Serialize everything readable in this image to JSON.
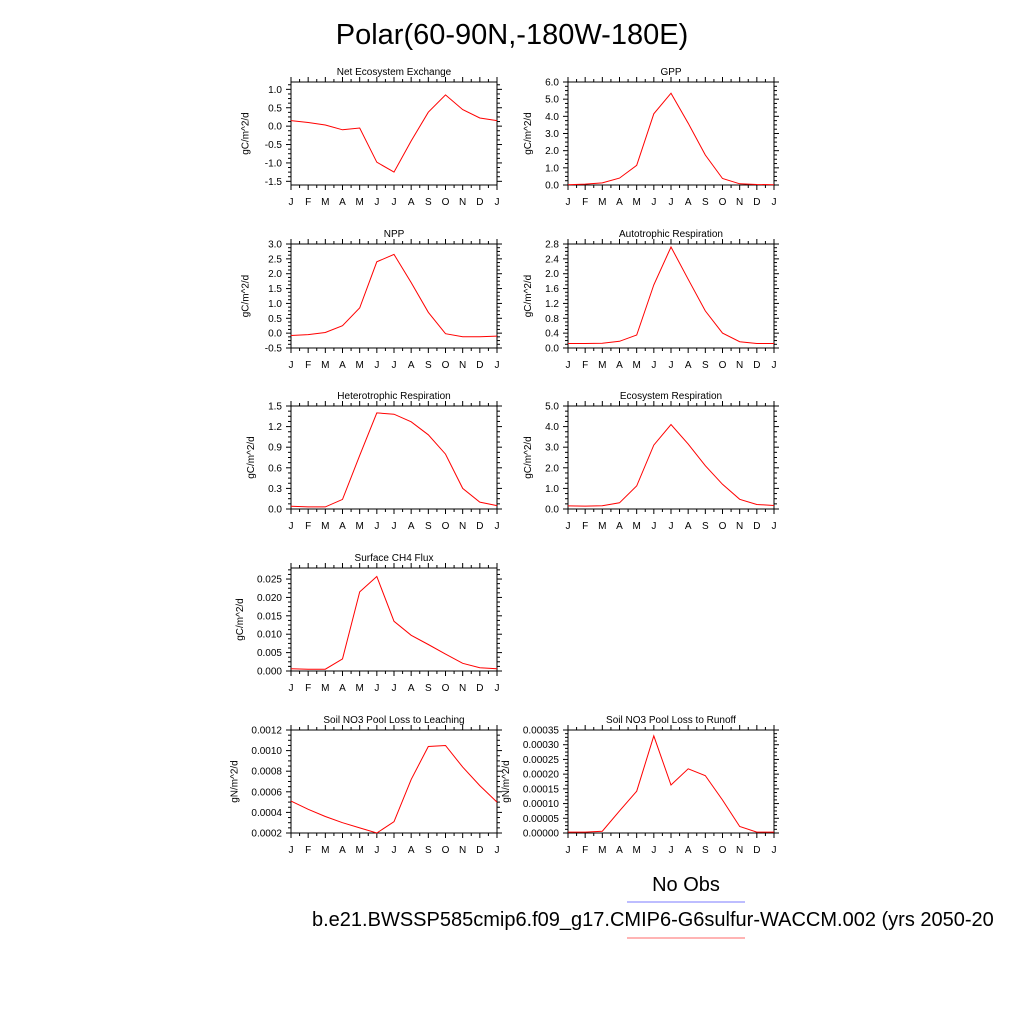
{
  "title": "Polar(60-90N,-180W-180E)",
  "legend": {
    "entries": [
      {
        "label": "No Obs",
        "color": "#7b7bff"
      },
      {
        "label": "b.e21.BWSSP585cmip6.f09_g17.CMIP6-G6sulfur-WACCM.002 (yrs 2050-20",
        "color": "#ff6a6a"
      }
    ]
  },
  "colors": {
    "series": "#ff0000",
    "axis": "#000000"
  },
  "chart_data": [
    {
      "type": "line",
      "title": "Net Ecosystem Exchange",
      "ylabel": "gC/m^2/d",
      "categories": [
        "J",
        "F",
        "M",
        "A",
        "M",
        "J",
        "J",
        "A",
        "S",
        "O",
        "N",
        "D",
        "J"
      ],
      "ylim": [
        -1.6,
        1.2
      ],
      "yticks": [
        1.0,
        0.5,
        0.0,
        -0.5,
        -1.0,
        -1.5
      ],
      "ytick_labels": [
        "1.0",
        "0.5",
        "0.0",
        "-0.5",
        "-1.0",
        "-1.5"
      ],
      "values": [
        0.15,
        0.1,
        0.03,
        -0.1,
        -0.05,
        -0.98,
        -1.25,
        -0.4,
        0.38,
        0.85,
        0.45,
        0.22,
        0.15
      ]
    },
    {
      "type": "line",
      "title": "GPP",
      "ylabel": "gC/m^2/d",
      "categories": [
        "J",
        "F",
        "M",
        "A",
        "M",
        "J",
        "J",
        "A",
        "S",
        "O",
        "N",
        "D",
        "J"
      ],
      "ylim": [
        0.0,
        6.0
      ],
      "yticks": [
        6.0,
        5.0,
        4.0,
        3.0,
        2.0,
        1.0,
        0.0
      ],
      "ytick_labels": [
        "6.0",
        "5.0",
        "4.0",
        "3.0",
        "2.0",
        "1.0",
        "0.0"
      ],
      "values": [
        0.02,
        0.05,
        0.12,
        0.4,
        1.15,
        4.15,
        5.35,
        3.6,
        1.75,
        0.38,
        0.07,
        0.03,
        0.02
      ]
    },
    {
      "type": "line",
      "title": "NPP",
      "ylabel": "gC/m^2/d",
      "categories": [
        "J",
        "F",
        "M",
        "A",
        "M",
        "J",
        "J",
        "A",
        "S",
        "O",
        "N",
        "D",
        "J"
      ],
      "ylim": [
        -0.5,
        3.0
      ],
      "yticks": [
        3.0,
        2.5,
        2.0,
        1.5,
        1.0,
        0.5,
        0.0,
        -0.5
      ],
      "ytick_labels": [
        "3.0",
        "2.5",
        "2.0",
        "1.5",
        "1.0",
        "0.5",
        "0.0",
        "-0.5"
      ],
      "values": [
        -0.08,
        -0.05,
        0.02,
        0.25,
        0.85,
        2.4,
        2.65,
        1.7,
        0.7,
        -0.02,
        -0.12,
        -0.12,
        -0.1
      ]
    },
    {
      "type": "line",
      "title": "Autotrophic Respiration",
      "ylabel": "gC/m^2/d",
      "categories": [
        "J",
        "F",
        "M",
        "A",
        "M",
        "J",
        "J",
        "A",
        "S",
        "O",
        "N",
        "D",
        "J"
      ],
      "ylim": [
        0.0,
        2.8
      ],
      "yticks": [
        2.8,
        2.4,
        2.0,
        1.6,
        1.2,
        0.8,
        0.4,
        0.0
      ],
      "ytick_labels": [
        "2.8",
        "2.4",
        "2.0",
        "1.6",
        "1.2",
        "0.8",
        "0.4",
        "0.0"
      ],
      "values": [
        0.12,
        0.12,
        0.13,
        0.18,
        0.35,
        1.7,
        2.72,
        1.85,
        1.0,
        0.4,
        0.17,
        0.12,
        0.12
      ]
    },
    {
      "type": "line",
      "title": "Heterotrophic Respiration",
      "ylabel": "gC/m^2/d",
      "categories": [
        "J",
        "F",
        "M",
        "A",
        "M",
        "J",
        "J",
        "A",
        "S",
        "O",
        "N",
        "D",
        "J"
      ],
      "ylim": [
        0.0,
        1.5
      ],
      "yticks": [
        1.5,
        1.2,
        0.9,
        0.6,
        0.3,
        0.0
      ],
      "ytick_labels": [
        "1.5",
        "1.2",
        "0.9",
        "0.6",
        "0.3",
        "0.0"
      ],
      "values": [
        0.04,
        0.03,
        0.03,
        0.14,
        0.78,
        1.4,
        1.38,
        1.27,
        1.08,
        0.8,
        0.3,
        0.1,
        0.05
      ]
    },
    {
      "type": "line",
      "title": "Ecosystem Respiration",
      "ylabel": "gC/m^2/d",
      "categories": [
        "J",
        "F",
        "M",
        "A",
        "M",
        "J",
        "J",
        "A",
        "S",
        "O",
        "N",
        "D",
        "J"
      ],
      "ylim": [
        0.0,
        5.0
      ],
      "yticks": [
        5.0,
        4.0,
        3.0,
        2.0,
        1.0,
        0.0
      ],
      "ytick_labels": [
        "5.0",
        "4.0",
        "3.0",
        "2.0",
        "1.0",
        "0.0"
      ],
      "values": [
        0.15,
        0.14,
        0.16,
        0.3,
        1.12,
        3.1,
        4.1,
        3.15,
        2.1,
        1.2,
        0.47,
        0.22,
        0.17
      ]
    },
    {
      "type": "line",
      "title": "Surface CH4 Flux",
      "ylabel": "gC/m^2/d",
      "categories": [
        "J",
        "F",
        "M",
        "A",
        "M",
        "J",
        "J",
        "A",
        "S",
        "O",
        "N",
        "D",
        "J"
      ],
      "ylim": [
        0.0,
        0.028
      ],
      "yticks": [
        0.025,
        0.02,
        0.015,
        0.01,
        0.005,
        0.0
      ],
      "ytick_labels": [
        "0.025",
        "0.020",
        "0.015",
        "0.010",
        "0.005",
        "0.000"
      ],
      "values": [
        0.0006,
        0.0005,
        0.0005,
        0.0033,
        0.0215,
        0.0257,
        0.0135,
        0.0097,
        0.0072,
        0.0046,
        0.0021,
        0.0009,
        0.0006
      ]
    },
    {
      "type": "line",
      "title": "Soil NO3 Pool Loss to Leaching",
      "ylabel": "gN/m^2/d",
      "categories": [
        "J",
        "F",
        "M",
        "A",
        "M",
        "J",
        "J",
        "A",
        "S",
        "O",
        "N",
        "D",
        "J"
      ],
      "ylim": [
        0.0002,
        0.0012
      ],
      "yticks": [
        0.0012,
        0.001,
        0.0008,
        0.0006,
        0.0004,
        0.0002
      ],
      "ytick_labels": [
        "0.0012",
        "0.0010",
        "0.0008",
        "0.0006",
        "0.0004",
        "0.0002"
      ],
      "values": [
        0.00051,
        0.00043,
        0.00036,
        0.0003,
        0.00025,
        0.0002,
        0.00031,
        0.00072,
        0.00104,
        0.00105,
        0.00084,
        0.00066,
        0.0005
      ]
    },
    {
      "type": "line",
      "title": "Soil NO3 Pool Loss to Runoff",
      "ylabel": "gN/m^2/d",
      "categories": [
        "J",
        "F",
        "M",
        "A",
        "M",
        "J",
        "J",
        "A",
        "S",
        "O",
        "N",
        "D",
        "J"
      ],
      "ylim": [
        0.0,
        0.00035
      ],
      "yticks": [
        0.00035,
        0.0003,
        0.00025,
        0.0002,
        0.00015,
        0.0001,
        5e-05,
        0.0
      ],
      "ytick_labels": [
        "0.00035",
        "0.00030",
        "0.00025",
        "0.00020",
        "0.00015",
        "0.00010",
        "0.00005",
        "0.00000"
      ],
      "values": [
        3e-06,
        3e-06,
        6e-06,
        7.5e-05,
        0.000142,
        0.00033,
        0.000163,
        0.000218,
        0.000195,
        0.000112,
        2.2e-05,
        3e-06,
        3e-06
      ]
    }
  ]
}
